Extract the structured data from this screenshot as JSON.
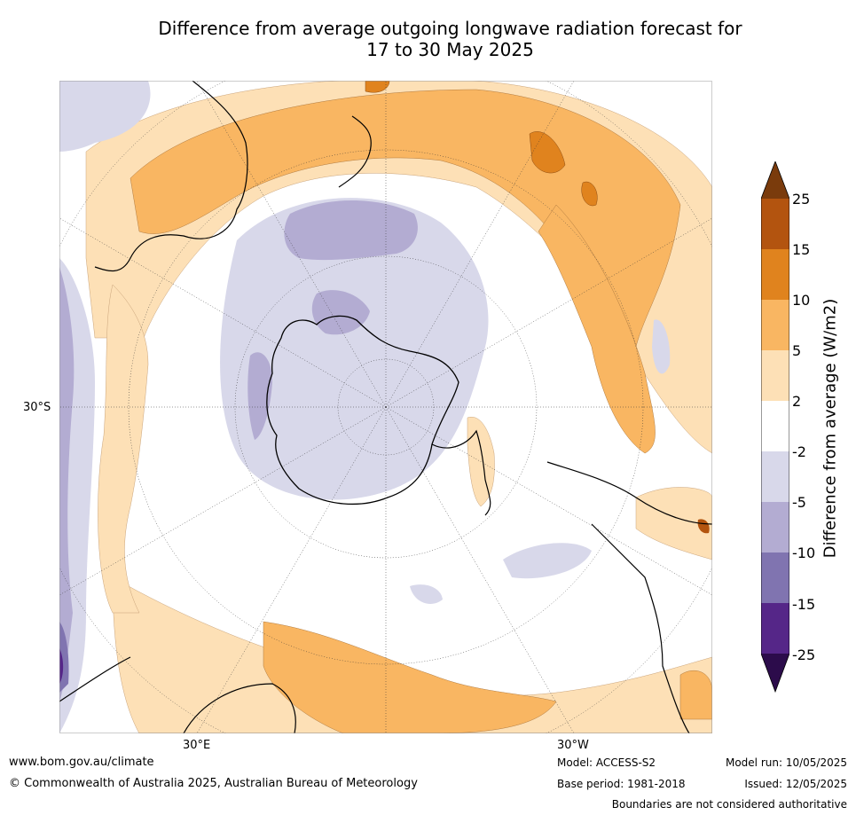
{
  "title": {
    "line1": "Difference from average outgoing longwave radiation forecast for",
    "line2": "17 to 30 May 2025"
  },
  "map": {
    "projection": "south-polar",
    "labels": {
      "lat_left": "30°S",
      "lon_left": "30°E",
      "lon_right": "30°W"
    },
    "colors": {
      "strong_positive": "#7a3b0c",
      "pos_15_25": "#b3540f",
      "pos_10_15": "#e0831e",
      "pos_5_10": "#f9b662",
      "pos_2_5": "#fde0b6",
      "neutral": "#ffffff",
      "neg_2_5": "#d8d8ea",
      "neg_5_10": "#b3acd2",
      "neg_10_15": "#8074b0",
      "neg_15_25": "#552688",
      "strong_negative": "#2c0c4b"
    }
  },
  "colorbar": {
    "title": "Difference from average (W/m2)",
    "ticks": [
      "25",
      "15",
      "10",
      "5",
      "2",
      "-2",
      "-5",
      "-10",
      "-15",
      "-25"
    ]
  },
  "footer": {
    "website": "www.bom.gov.au/climate",
    "copyright": "© Commonwealth of Australia 2025, Australian Bureau of Meteorology",
    "model": "Model: ACCESS-S2",
    "base_period": "Base period: 1981-2018",
    "model_run": "Model run: 10/05/2025",
    "issued": "Issued: 12/05/2025",
    "disclaimer": "Boundaries are not considered authoritative"
  }
}
